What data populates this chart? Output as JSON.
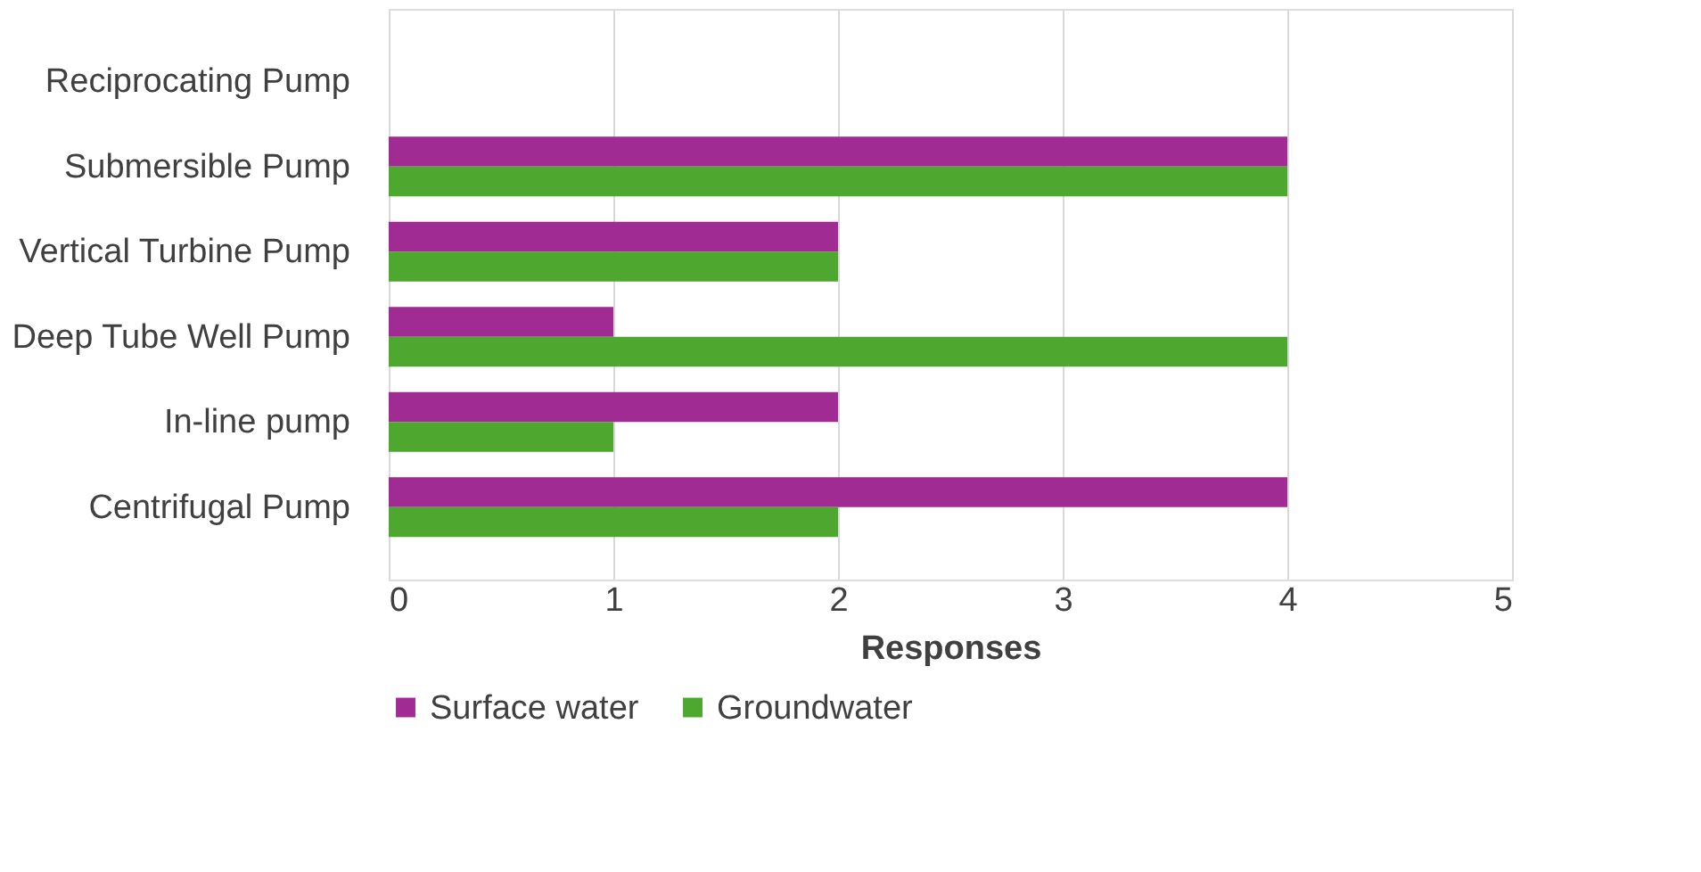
{
  "chart_data": {
    "type": "bar",
    "orientation": "horizontal",
    "xlabel": "Responses",
    "categories": [
      "Reciprocating Pump",
      "Submersible Pump",
      "Vertical Turbine Pump",
      "Deep Tube Well Pump",
      "In-line pump",
      "Centrifugal Pump"
    ],
    "series": [
      {
        "name": "Surface water",
        "color": "#a02b93",
        "values": [
          0,
          4,
          2,
          1,
          2,
          4
        ]
      },
      {
        "name": "Groundwater",
        "color": "#4ea72e",
        "values": [
          0,
          4,
          2,
          4,
          1,
          2
        ]
      }
    ],
    "xlim": [
      0,
      5
    ],
    "xticks": [
      0,
      1,
      2,
      3,
      4,
      5
    ],
    "grid": "x",
    "legend": "bottom"
  }
}
